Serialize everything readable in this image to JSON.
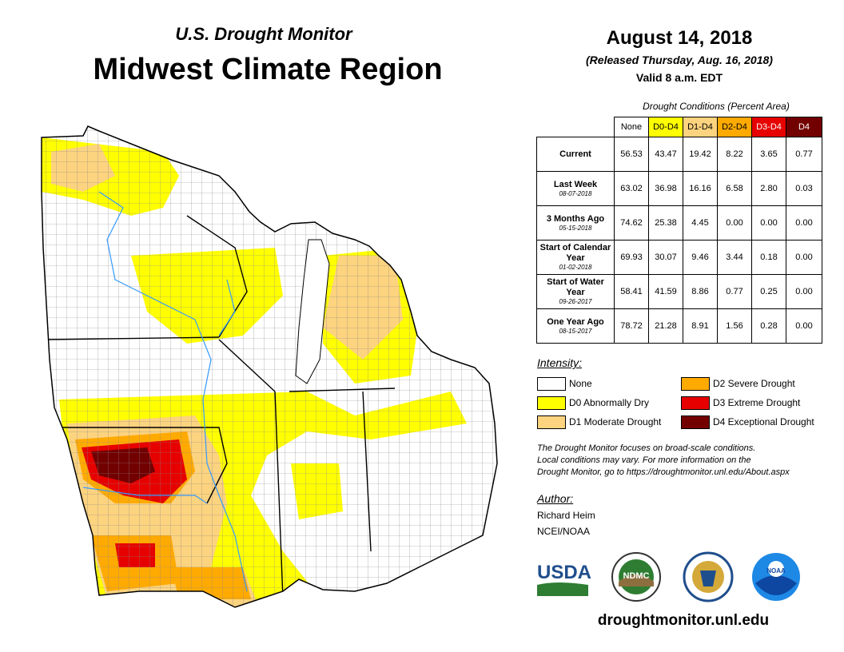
{
  "header": {
    "subtitle": "U.S. Drought Monitor",
    "title": "Midwest Climate Region",
    "date": "August 14, 2018",
    "released": "(Released Thursday, Aug. 16, 2018)",
    "valid": "Valid 8 a.m. EDT"
  },
  "table": {
    "caption": "Drought Conditions (Percent Area)",
    "columns": [
      "None",
      "D0-D4",
      "D1-D4",
      "D2-D4",
      "D3-D4",
      "D4"
    ],
    "column_colors": [
      "#ffffff",
      "#ffff00",
      "#fcd37f",
      "#ffaa00",
      "#e60000",
      "#730000"
    ],
    "rows": [
      {
        "label": "Current",
        "date": "",
        "values": [
          "56.53",
          "43.47",
          "19.42",
          "8.22",
          "3.65",
          "0.77"
        ]
      },
      {
        "label": "Last Week",
        "date": "08-07-2018",
        "values": [
          "63.02",
          "36.98",
          "16.16",
          "6.58",
          "2.80",
          "0.03"
        ]
      },
      {
        "label": "3 Months Ago",
        "date": "05-15-2018",
        "values": [
          "74.62",
          "25.38",
          "4.45",
          "0.00",
          "0.00",
          "0.00"
        ]
      },
      {
        "label": "Start of Calendar Year",
        "date": "01-02-2018",
        "values": [
          "69.93",
          "30.07",
          "9.46",
          "3.44",
          "0.18",
          "0.00"
        ]
      },
      {
        "label": "Start of Water Year",
        "date": "09-26-2017",
        "values": [
          "58.41",
          "41.59",
          "8.86",
          "0.77",
          "0.25",
          "0.00"
        ]
      },
      {
        "label": "One Year Ago",
        "date": "08-15-2017",
        "values": [
          "78.72",
          "21.28",
          "8.91",
          "1.56",
          "0.28",
          "0.00"
        ]
      }
    ]
  },
  "legend": {
    "title": "Intensity:",
    "items": [
      {
        "label": "None",
        "color": "#ffffff"
      },
      {
        "label": "D0 Abnormally Dry",
        "color": "#ffff00"
      },
      {
        "label": "D1 Moderate Drought",
        "color": "#fcd37f"
      },
      {
        "label": "D2 Severe Drought",
        "color": "#ffaa00"
      },
      {
        "label": "D3 Extreme Drought",
        "color": "#e60000"
      },
      {
        "label": "D4 Exceptional Drought",
        "color": "#730000"
      }
    ]
  },
  "note": {
    "line1": "The Drought Monitor focuses on broad-scale conditions.",
    "line2": "Local conditions may vary. For more information on the",
    "line3": "Drought Monitor, go to https://droughtmonitor.unl.edu/About.aspx"
  },
  "author": {
    "heading": "Author:",
    "name": "Richard Heim",
    "org": "NCEI/NOAA"
  },
  "logos": {
    "usda": "USDA",
    "ndmc": "NDMC",
    "noaa": "NOAA"
  },
  "website": "droughtmonitor.unl.edu"
}
